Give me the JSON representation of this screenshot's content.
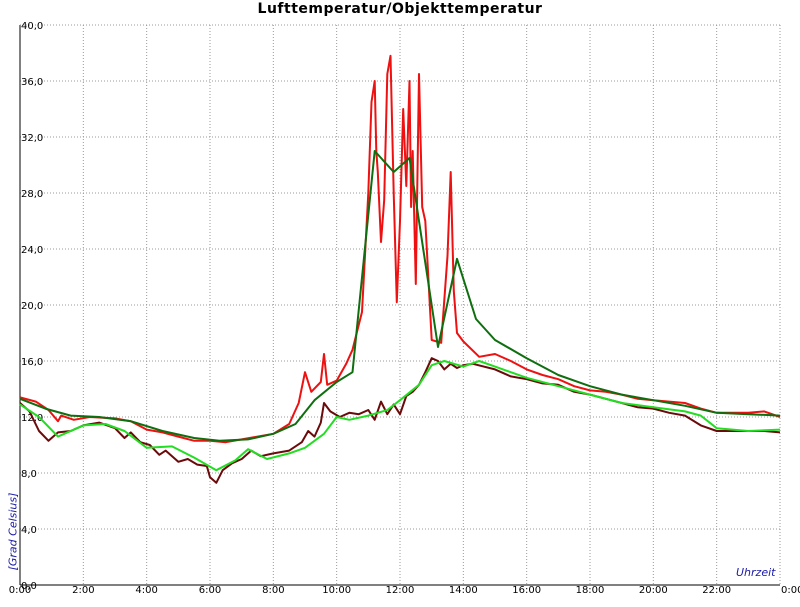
{
  "chart_data": {
    "type": "line",
    "title": "Lufttemperatur/Objekttemperatur",
    "ylabel": "[Grad Celsius]",
    "xlabel": "Uhrzeit",
    "xlim": [
      0,
      24
    ],
    "ylim": [
      0,
      40
    ],
    "x_tick_labels": [
      "0:00",
      "2:00",
      "4:00",
      "6:00",
      "8:00",
      "10:00",
      "12:00",
      "14:00",
      "16:00",
      "18:00",
      "20:00",
      "22:00",
      "0:00"
    ],
    "y_tick_labels": [
      "0,0",
      "4,0",
      "8,0",
      "12,0",
      "16,0",
      "20,0",
      "24,0",
      "28,0",
      "32,0",
      "36,0",
      "40,0"
    ],
    "grid": true,
    "colors": {
      "series_red": "#ee1111",
      "series_darkgreen": "#0f6e0f",
      "series_darkred": "#6b0a0a",
      "series_lightgreen": "#22dd22",
      "grid": "#999999",
      "axis": "#000000"
    },
    "series": [
      {
        "color_key": "series_red",
        "points": [
          [
            0,
            13.4
          ],
          [
            0.5,
            13.1
          ],
          [
            0.9,
            12.5
          ],
          [
            1.2,
            11.7
          ],
          [
            1.3,
            12.1
          ],
          [
            1.7,
            11.8
          ],
          [
            2.2,
            12.0
          ],
          [
            3,
            11.9
          ],
          [
            3.5,
            11.7
          ],
          [
            4,
            11.1
          ],
          [
            4.5,
            10.9
          ],
          [
            5,
            10.6
          ],
          [
            5.5,
            10.3
          ],
          [
            6,
            10.3
          ],
          [
            6.5,
            10.2
          ],
          [
            7,
            10.4
          ],
          [
            7.5,
            10.6
          ],
          [
            8,
            10.8
          ],
          [
            8.5,
            11.5
          ],
          [
            8.8,
            13.0
          ],
          [
            9.0,
            15.2
          ],
          [
            9.2,
            13.8
          ],
          [
            9.5,
            14.5
          ],
          [
            9.6,
            16.5
          ],
          [
            9.7,
            14.3
          ],
          [
            10,
            14.6
          ],
          [
            10.3,
            15.8
          ],
          [
            10.5,
            16.8
          ],
          [
            10.8,
            19.5
          ],
          [
            11.0,
            28.0
          ],
          [
            11.1,
            34.5
          ],
          [
            11.2,
            36.0
          ],
          [
            11.25,
            31.0
          ],
          [
            11.3,
            29.5
          ],
          [
            11.4,
            24.5
          ],
          [
            11.5,
            27.5
          ],
          [
            11.6,
            36.5
          ],
          [
            11.7,
            37.8
          ],
          [
            11.8,
            28.0
          ],
          [
            11.9,
            20.2
          ],
          [
            12.0,
            26.0
          ],
          [
            12.1,
            34.0
          ],
          [
            12.2,
            28.5
          ],
          [
            12.3,
            36.0
          ],
          [
            12.35,
            27.0
          ],
          [
            12.4,
            31.0
          ],
          [
            12.5,
            21.5
          ],
          [
            12.6,
            36.5
          ],
          [
            12.7,
            27.0
          ],
          [
            12.8,
            26.0
          ],
          [
            13.0,
            17.5
          ],
          [
            13.3,
            17.3
          ],
          [
            13.5,
            23.5
          ],
          [
            13.6,
            29.5
          ],
          [
            13.7,
            21.0
          ],
          [
            13.8,
            18.0
          ],
          [
            14.0,
            17.4
          ],
          [
            14.5,
            16.3
          ],
          [
            15.0,
            16.5
          ],
          [
            15.5,
            16.0
          ],
          [
            16.0,
            15.4
          ],
          [
            16.5,
            15.0
          ],
          [
            17.0,
            14.7
          ],
          [
            17.5,
            14.2
          ],
          [
            18.0,
            13.9
          ],
          [
            18.5,
            13.8
          ],
          [
            19.0,
            13.6
          ],
          [
            19.5,
            13.3
          ],
          [
            20.0,
            13.2
          ],
          [
            20.5,
            13.1
          ],
          [
            21.0,
            13.0
          ],
          [
            21.5,
            12.6
          ],
          [
            22.0,
            12.3
          ],
          [
            22.5,
            12.3
          ],
          [
            23.0,
            12.3
          ],
          [
            23.5,
            12.4
          ],
          [
            24.0,
            12.0
          ]
        ]
      },
      {
        "color_key": "series_darkgreen",
        "points": [
          [
            0,
            13.3
          ],
          [
            0.8,
            12.6
          ],
          [
            1.6,
            12.1
          ],
          [
            2.5,
            12.0
          ],
          [
            3.5,
            11.7
          ],
          [
            4.5,
            11.0
          ],
          [
            5.5,
            10.5
          ],
          [
            6.3,
            10.3
          ],
          [
            7.2,
            10.4
          ],
          [
            8.0,
            10.8
          ],
          [
            8.7,
            11.5
          ],
          [
            9.3,
            13.2
          ],
          [
            10.0,
            14.5
          ],
          [
            10.5,
            15.2
          ],
          [
            11.2,
            31.0
          ],
          [
            11.8,
            29.5
          ],
          [
            12.3,
            30.5
          ],
          [
            13.2,
            17.0
          ],
          [
            13.8,
            23.3
          ],
          [
            14.4,
            19.0
          ],
          [
            15.0,
            17.5
          ],
          [
            16.0,
            16.2
          ],
          [
            17.0,
            15.0
          ],
          [
            18.0,
            14.2
          ],
          [
            19.0,
            13.6
          ],
          [
            20.0,
            13.2
          ],
          [
            21.0,
            12.8
          ],
          [
            22.0,
            12.3
          ],
          [
            23.0,
            12.2
          ],
          [
            24.0,
            12.1
          ]
        ]
      },
      {
        "color_key": "series_darkred",
        "points": [
          [
            0,
            13.0
          ],
          [
            0.3,
            12.4
          ],
          [
            0.6,
            11.0
          ],
          [
            0.9,
            10.3
          ],
          [
            1.2,
            10.9
          ],
          [
            1.6,
            11.0
          ],
          [
            2.0,
            11.4
          ],
          [
            2.5,
            11.6
          ],
          [
            3.0,
            11.2
          ],
          [
            3.3,
            10.5
          ],
          [
            3.5,
            10.9
          ],
          [
            3.8,
            10.2
          ],
          [
            4.1,
            10.0
          ],
          [
            4.4,
            9.3
          ],
          [
            4.6,
            9.6
          ],
          [
            5.0,
            8.8
          ],
          [
            5.3,
            9.0
          ],
          [
            5.6,
            8.6
          ],
          [
            5.9,
            8.5
          ],
          [
            6.0,
            7.7
          ],
          [
            6.2,
            7.3
          ],
          [
            6.4,
            8.2
          ],
          [
            6.7,
            8.7
          ],
          [
            7.0,
            9.0
          ],
          [
            7.3,
            9.6
          ],
          [
            7.6,
            9.2
          ],
          [
            8.0,
            9.4
          ],
          [
            8.5,
            9.6
          ],
          [
            8.9,
            10.2
          ],
          [
            9.1,
            11.0
          ],
          [
            9.3,
            10.6
          ],
          [
            9.5,
            11.6
          ],
          [
            9.6,
            13.0
          ],
          [
            9.8,
            12.4
          ],
          [
            10.1,
            12.0
          ],
          [
            10.4,
            12.3
          ],
          [
            10.7,
            12.2
          ],
          [
            11.0,
            12.5
          ],
          [
            11.2,
            11.8
          ],
          [
            11.4,
            13.1
          ],
          [
            11.6,
            12.2
          ],
          [
            11.8,
            12.9
          ],
          [
            12.0,
            12.2
          ],
          [
            12.2,
            13.5
          ],
          [
            12.4,
            13.8
          ],
          [
            12.6,
            14.3
          ],
          [
            12.8,
            15.2
          ],
          [
            13.0,
            16.2
          ],
          [
            13.2,
            16.0
          ],
          [
            13.4,
            15.4
          ],
          [
            13.6,
            15.8
          ],
          [
            13.8,
            15.5
          ],
          [
            14.0,
            15.7
          ],
          [
            14.3,
            15.8
          ],
          [
            15.0,
            15.4
          ],
          [
            15.5,
            14.9
          ],
          [
            16.0,
            14.7
          ],
          [
            16.5,
            14.4
          ],
          [
            17.0,
            14.3
          ],
          [
            17.5,
            13.8
          ],
          [
            18.0,
            13.6
          ],
          [
            18.5,
            13.3
          ],
          [
            19.0,
            13.0
          ],
          [
            19.5,
            12.7
          ],
          [
            20.0,
            12.6
          ],
          [
            20.5,
            12.3
          ],
          [
            21.0,
            12.1
          ],
          [
            21.5,
            11.4
          ],
          [
            22.0,
            11.0
          ],
          [
            22.5,
            11.0
          ],
          [
            23.0,
            11.0
          ],
          [
            23.5,
            11.0
          ],
          [
            24.0,
            10.9
          ]
        ]
      },
      {
        "color_key": "series_lightgreen",
        "points": [
          [
            0,
            12.9
          ],
          [
            0.6,
            12.0
          ],
          [
            1.2,
            10.6
          ],
          [
            2.0,
            11.4
          ],
          [
            2.7,
            11.5
          ],
          [
            3.3,
            11.0
          ],
          [
            4.0,
            9.8
          ],
          [
            4.8,
            9.9
          ],
          [
            5.5,
            9.1
          ],
          [
            6.2,
            8.2
          ],
          [
            6.8,
            8.9
          ],
          [
            7.2,
            9.7
          ],
          [
            7.8,
            9.0
          ],
          [
            8.5,
            9.4
          ],
          [
            9.0,
            9.8
          ],
          [
            9.6,
            10.8
          ],
          [
            10.0,
            12.0
          ],
          [
            10.4,
            11.8
          ],
          [
            11.0,
            12.1
          ],
          [
            11.6,
            12.5
          ],
          [
            12.0,
            13.2
          ],
          [
            12.6,
            14.3
          ],
          [
            13.0,
            15.7
          ],
          [
            13.4,
            16.0
          ],
          [
            14.0,
            15.6
          ],
          [
            14.5,
            16.0
          ],
          [
            15.0,
            15.6
          ],
          [
            16.0,
            14.8
          ],
          [
            17.0,
            14.2
          ],
          [
            18.0,
            13.6
          ],
          [
            19.0,
            13.0
          ],
          [
            20.0,
            12.7
          ],
          [
            21.0,
            12.4
          ],
          [
            21.5,
            12.1
          ],
          [
            22.0,
            11.2
          ],
          [
            22.5,
            11.1
          ],
          [
            23.0,
            11.0
          ],
          [
            24.0,
            11.1
          ]
        ]
      }
    ]
  }
}
